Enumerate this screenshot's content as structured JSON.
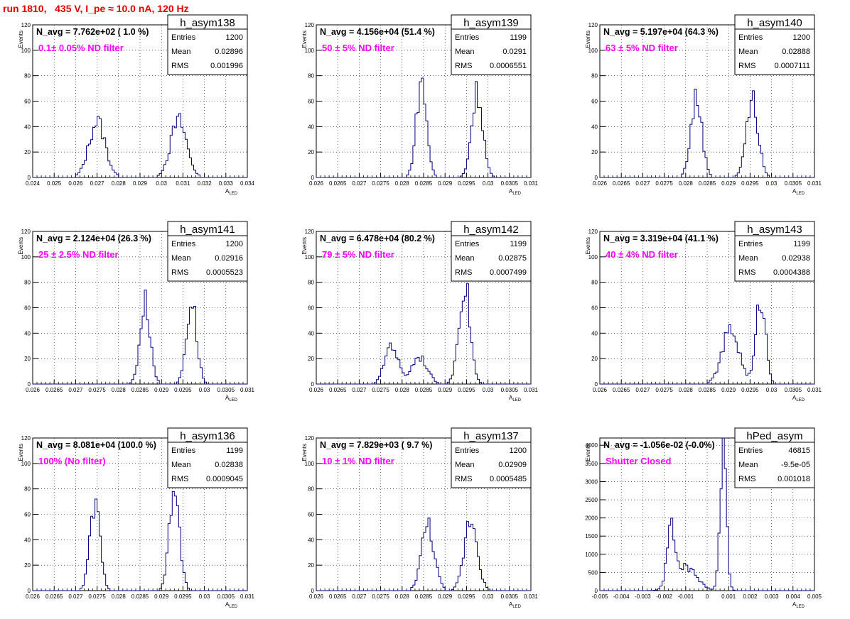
{
  "run_title": "run 1810,   435 V, I_pe ≈ 10.0 nA, 120 Hz",
  "colors": {
    "hist": "#000080",
    "label": "#ff00ff",
    "title": "#e00000",
    "grid": "#000000"
  },
  "chart_data": [
    {
      "type": "bar",
      "hist_name": "h_asym138",
      "navg": "N_avg = 7.762e+02 ( 1.0 %)",
      "filter": "0.1± 0.05% ND filter",
      "entries": "1200",
      "mean": "0.02896",
      "rms": "0.001996",
      "ylabel": "Events",
      "xlabel": "A",
      "xlim": [
        0.024,
        0.034
      ],
      "ylim": [
        0,
        120
      ],
      "xticks": [
        "0.024",
        "0.025",
        "0.026",
        "0.027",
        "0.028",
        "0.029",
        "0.03",
        "0.031",
        "0.032",
        "0.033",
        "0.034"
      ],
      "yticks": [
        "0",
        "20",
        "40",
        "60",
        "80",
        "100",
        "120"
      ],
      "peaks": [
        {
          "mu": 0.027,
          "sigma": 0.00038,
          "amp": 44
        },
        {
          "mu": 0.0308,
          "sigma": 0.00038,
          "amp": 44
        }
      ],
      "bins": 100
    },
    {
      "type": "bar",
      "hist_name": "h_asym139",
      "navg": "N_avg = 4.156e+04 (51.4 %)",
      "filter": "50 ± 5% ND filter",
      "entries": "1199",
      "mean": "0.0291",
      "rms": "0.0006551",
      "ylabel": "Events",
      "xlabel": "A",
      "xlim": [
        0.026,
        0.031
      ],
      "ylim": [
        0,
        120
      ],
      "xticks": [
        "0.026",
        "0.0265",
        "0.027",
        "0.0275",
        "0.028",
        "0.0285",
        "0.029",
        "0.0295",
        "0.03",
        "0.0305",
        "0.031"
      ],
      "yticks": [
        "0",
        "20",
        "40",
        "60",
        "80",
        "100",
        "120"
      ],
      "peaks": [
        {
          "mu": 0.02845,
          "sigma": 0.00012,
          "amp": 75
        },
        {
          "mu": 0.02975,
          "sigma": 0.00013,
          "amp": 68
        }
      ],
      "bins": 100
    },
    {
      "type": "bar",
      "hist_name": "h_asym140",
      "navg": "N_avg = 5.197e+04 (64.3 %)",
      "filter": "63 ± 5% ND filter",
      "entries": "1200",
      "mean": "0.02888",
      "rms": "0.0007111",
      "ylabel": "Events",
      "xlabel": "A",
      "xlim": [
        0.026,
        0.031
      ],
      "ylim": [
        0,
        120
      ],
      "xticks": [
        "0.026",
        "0.0265",
        "0.027",
        "0.0275",
        "0.028",
        "0.0285",
        "0.029",
        "0.0295",
        "0.03",
        "0.0305",
        "0.031"
      ],
      "yticks": [
        "0",
        "20",
        "40",
        "60",
        "80",
        "100",
        "120"
      ],
      "peaks": [
        {
          "mu": 0.02825,
          "sigma": 0.00013,
          "amp": 62
        },
        {
          "mu": 0.02955,
          "sigma": 0.00014,
          "amp": 60
        }
      ],
      "bins": 100
    },
    {
      "type": "bar",
      "hist_name": "h_asym141",
      "navg": "N_avg = 2.124e+04 (26.3 %)",
      "filter": "25 ± 2.5% ND filter",
      "entries": "1200",
      "mean": "0.02916",
      "rms": "0.0005523",
      "ylabel": "Events",
      "xlabel": "A",
      "xlim": [
        0.026,
        0.031
      ],
      "ylim": [
        0,
        120
      ],
      "xticks": [
        "0.026",
        "0.0265",
        "0.027",
        "0.0275",
        "0.028",
        "0.0285",
        "0.029",
        "0.0295",
        "0.03",
        "0.0305",
        "0.031"
      ],
      "yticks": [
        "0",
        "20",
        "40",
        "60",
        "80",
        "100",
        "120"
      ],
      "peaks": [
        {
          "mu": 0.02862,
          "sigma": 0.00012,
          "amp": 64
        },
        {
          "mu": 0.0297,
          "sigma": 0.00012,
          "amp": 66
        }
      ],
      "bins": 100
    },
    {
      "type": "bar",
      "hist_name": "h_asym142",
      "navg": "N_avg = 6.478e+04 (80.2 %)",
      "filter": "79 ± 5% ND filter",
      "entries": "1199",
      "mean": "0.02875",
      "rms": "0.0007499",
      "ylabel": "Events",
      "xlabel": "A",
      "xlim": [
        0.026,
        0.031
      ],
      "ylim": [
        0,
        120
      ],
      "xticks": [
        "0.026",
        "0.0265",
        "0.027",
        "0.0275",
        "0.028",
        "0.0285",
        "0.029",
        "0.0295",
        "0.03",
        "0.0305",
        "0.031"
      ],
      "yticks": [
        "0",
        "20",
        "40",
        "60",
        "80",
        "100",
        "120"
      ],
      "peaks": [
        {
          "mu": 0.02775,
          "sigma": 0.00015,
          "amp": 32
        },
        {
          "mu": 0.0284,
          "sigma": 0.00018,
          "amp": 22
        },
        {
          "mu": 0.02945,
          "sigma": 0.00013,
          "amp": 80
        }
      ],
      "bins": 100
    },
    {
      "type": "bar",
      "hist_name": "h_asym143",
      "navg": "N_avg = 3.319e+04 (41.1 %)",
      "filter": "40 ± 4% ND filter",
      "entries": "1199",
      "mean": "0.02938",
      "rms": "0.0004388",
      "ylabel": "Events",
      "xlabel": "A",
      "xlim": [
        0.026,
        0.031
      ],
      "ylim": [
        0,
        120
      ],
      "xticks": [
        "0.026",
        "0.0265",
        "0.027",
        "0.0275",
        "0.028",
        "0.0285",
        "0.029",
        "0.0295",
        "0.03",
        "0.0305",
        "0.031"
      ],
      "yticks": [
        "0",
        "20",
        "40",
        "60",
        "80",
        "100",
        "120"
      ],
      "peaks": [
        {
          "mu": 0.02905,
          "sigma": 0.0002,
          "amp": 42
        },
        {
          "mu": 0.02975,
          "sigma": 0.00011,
          "amp": 68
        }
      ],
      "bins": 100
    },
    {
      "type": "bar",
      "hist_name": "h_asym136",
      "navg": "N_avg = 8.081e+04 (100.0 %)",
      "filter": "100% (No filter)",
      "entries": "1199",
      "mean": "0.02838",
      "rms": "0.0009045",
      "ylabel": "Events",
      "xlabel": "A",
      "xlim": [
        0.026,
        0.031
      ],
      "ylim": [
        0,
        120
      ],
      "xticks": [
        "0.026",
        "0.0265",
        "0.027",
        "0.0275",
        "0.028",
        "0.0285",
        "0.029",
        "0.0295",
        "0.03",
        "0.0305",
        "0.031"
      ],
      "yticks": [
        "0",
        "20",
        "40",
        "60",
        "80",
        "100",
        "120"
      ],
      "peaks": [
        {
          "mu": 0.02745,
          "sigma": 0.00012,
          "amp": 66
        },
        {
          "mu": 0.0293,
          "sigma": 0.00012,
          "amp": 78
        }
      ],
      "bins": 100
    },
    {
      "type": "bar",
      "hist_name": "h_asym137",
      "navg": "N_avg = 7.829e+03 ( 9.7 %)",
      "filter": "10 ± 1% ND filter",
      "entries": "1200",
      "mean": "0.02909",
      "rms": "0.0005485",
      "ylabel": "Events",
      "xlabel": "A",
      "xlim": [
        0.026,
        0.031
      ],
      "ylim": [
        0,
        120
      ],
      "xticks": [
        "0.026",
        "0.0265",
        "0.027",
        "0.0275",
        "0.028",
        "0.0285",
        "0.029",
        "0.0295",
        "0.03",
        "0.0305",
        "0.031"
      ],
      "yticks": [
        "0",
        "20",
        "40",
        "60",
        "80",
        "100",
        "120"
      ],
      "peaks": [
        {
          "mu": 0.0286,
          "sigma": 0.00015,
          "amp": 52
        },
        {
          "mu": 0.0296,
          "sigma": 0.00015,
          "amp": 58
        }
      ],
      "bins": 100
    },
    {
      "type": "bar",
      "hist_name": "hPed_asym",
      "navg": "N_avg = -1.056e-02 (-0.0%)",
      "filter": "Shutter Closed",
      "entries": "46815",
      "mean": "-9.5e-05",
      "rms": "0.001018",
      "ylabel": "Events",
      "xlabel": "A",
      "xlim": [
        -0.005,
        0.005
      ],
      "ylim": [
        0,
        4200
      ],
      "xticks": [
        "-0.005",
        "-0.004",
        "-0.003",
        "-0.002",
        "-0.001",
        "0",
        "0.001",
        "0.002",
        "0.003",
        "0.004",
        "0.005"
      ],
      "yticks": [
        "0",
        "500",
        "1000",
        "1500",
        "2000",
        "2500",
        "3000",
        "3500",
        "4000"
      ],
      "peaks": [
        {
          "mu": -0.0017,
          "sigma": 0.00018,
          "amp": 1550
        },
        {
          "mu": -0.001,
          "sigma": 0.0005,
          "amp": 650
        },
        {
          "mu": 0.00075,
          "sigma": 0.00015,
          "amp": 3900
        }
      ],
      "bins": 100
    }
  ],
  "stat_labels": {
    "entries": "Entries",
    "mean": "Mean",
    "rms": "RMS"
  },
  "xlabel_sub": "LED"
}
